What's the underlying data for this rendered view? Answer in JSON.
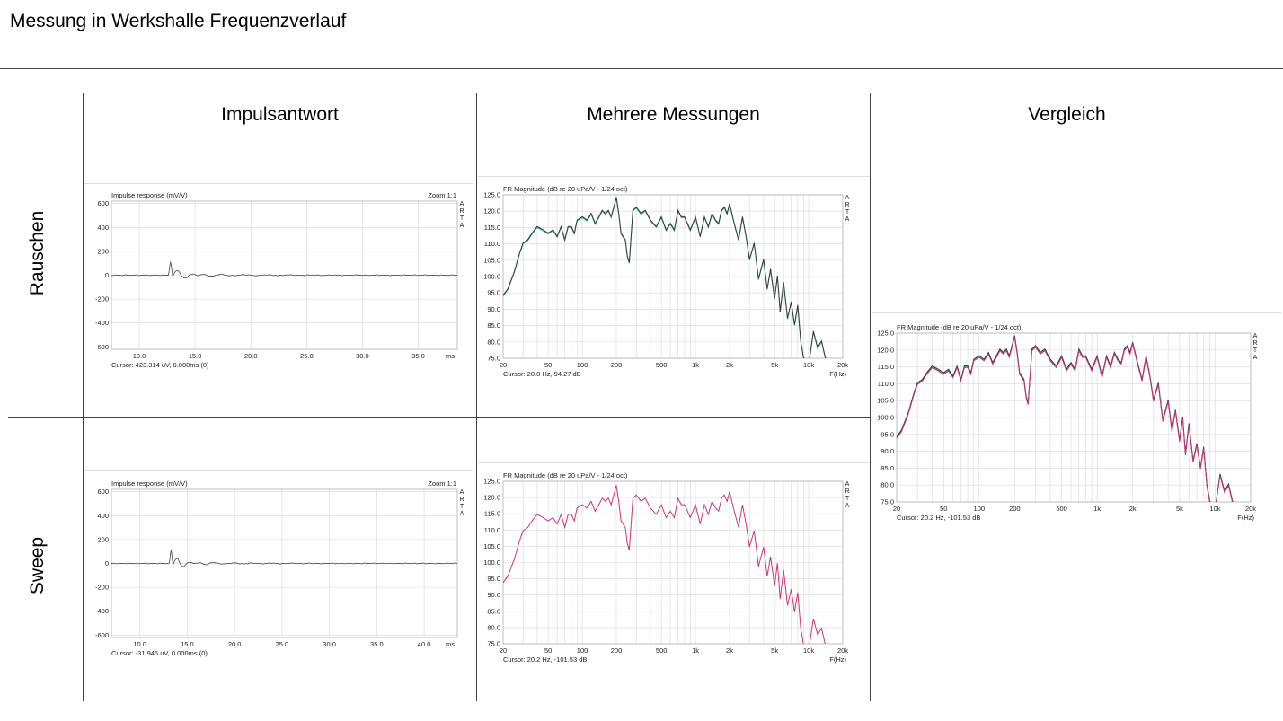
{
  "page": {
    "title": "Messung in Werkshalle Frequenzverlauf"
  },
  "columns": [
    "Impulsantwort",
    "Mehrere Messungen",
    "Vergleich"
  ],
  "rows": [
    "Rauschen",
    "Sweep"
  ],
  "colors": {
    "grid": "#d8d8d8",
    "frame": "#b0b0b0",
    "trace_gray": "#555555",
    "trace_green": "#2db37a",
    "trace_pink": "#cc3377",
    "trace_dark": "#3a3a3a"
  },
  "chart_data": [
    {
      "id": "ir_rauschen",
      "type": "line",
      "title": "Impulse response (mV/V)",
      "zoom": "Zoom 1:1",
      "arta": [
        "A",
        "R",
        "T",
        "A"
      ],
      "cursor": "Cursor: 423.314 uV, 0.000ms (0)",
      "xlabel": "ms",
      "xlim": [
        7.5,
        38.5
      ],
      "ylim": [
        -620,
        620
      ],
      "xticks": [
        10,
        15,
        20,
        25,
        30,
        35
      ],
      "xtick_labels": [
        "10.0",
        "15.0",
        "20.0",
        "25.0",
        "30.0",
        "35.0"
      ],
      "yticks": [
        600,
        400,
        200,
        0,
        -200,
        -400,
        -600
      ],
      "ytick_labels": [
        "600",
        "400",
        "200",
        "0",
        "-200",
        "-400",
        "-600"
      ],
      "impulse_ms": 12.8,
      "series": [
        {
          "values_ms": [
            7.5,
            12.5,
            12.8,
            13.1,
            13.5,
            14.0,
            15.0,
            20.0,
            38.5
          ],
          "values": [
            0,
            10,
            110,
            -30,
            -45,
            20,
            -10,
            5,
            0
          ]
        }
      ]
    },
    {
      "id": "ir_sweep",
      "type": "line",
      "title": "Impulse response (mV/V)",
      "zoom": "Zoom 1:1",
      "arta": [
        "A",
        "R",
        "T",
        "A"
      ],
      "cursor": "Cursor: -31.945 uV, 0.000ms (0)",
      "xlabel": "ms",
      "xlim": [
        7.0,
        43.5
      ],
      "ylim": [
        -620,
        620
      ],
      "xticks": [
        10,
        15,
        20,
        25,
        30,
        35,
        40
      ],
      "xtick_labels": [
        "10.0",
        "15.0",
        "20.0",
        "25.0",
        "30.0",
        "35.0",
        "40.0"
      ],
      "yticks": [
        600,
        400,
        200,
        0,
        -200,
        -400,
        -600
      ],
      "ytick_labels": [
        "600",
        "400",
        "200",
        "0",
        "-200",
        "-400",
        "-600"
      ],
      "impulse_ms": 13.3,
      "series": [
        {
          "values_ms": [
            7.0,
            13.0,
            13.3,
            13.6,
            14.0,
            14.5,
            15.5,
            20.0,
            43.5
          ],
          "values": [
            0,
            10,
            115,
            -30,
            -50,
            20,
            -10,
            5,
            0
          ]
        }
      ]
    },
    {
      "id": "fr_rauschen",
      "type": "line",
      "title": "FR Magnitude (dB re 20 uPa/V - 1/24 oct)",
      "arta": [
        "A",
        "R",
        "T",
        "A"
      ],
      "cursor": "Cursor: 20.0 Hz, 94.27 dB",
      "xlabel": "F(Hz)",
      "xscale": "log",
      "xlim": [
        20,
        20000
      ],
      "ylim": [
        75,
        125
      ],
      "xticks": [
        20,
        50,
        100,
        200,
        500,
        1000,
        2000,
        5000,
        10000,
        20000
      ],
      "xtick_labels": [
        "20",
        "50",
        "100",
        "200",
        "500",
        "1k",
        "2k",
        "5k",
        "10k",
        "20k"
      ],
      "yticks": [
        125,
        120,
        115,
        110,
        105,
        100,
        95,
        90,
        85,
        80,
        75
      ],
      "ytick_labels": [
        "125.0",
        "120.0",
        "115.0",
        "110.0",
        "105.0",
        "100.0",
        "95.0",
        "90.0",
        "85.0",
        "80.0",
        "75.0"
      ],
      "series": [
        {
          "traces": [
            "green",
            "dark"
          ],
          "x": [
            20,
            22,
            25,
            28,
            30,
            33,
            36,
            40,
            45,
            50,
            55,
            60,
            65,
            70,
            75,
            80,
            85,
            90,
            100,
            110,
            120,
            130,
            140,
            150,
            160,
            170,
            180,
            190,
            200,
            210,
            220,
            240,
            250,
            260,
            280,
            300,
            330,
            360,
            400,
            450,
            500,
            550,
            600,
            650,
            700,
            750,
            800,
            900,
            1000,
            1100,
            1200,
            1300,
            1400,
            1500,
            1600,
            1700,
            1800,
            1900,
            2000,
            2200,
            2400,
            2600,
            2800,
            3000,
            3300,
            3600,
            4000,
            4300,
            4600,
            5000,
            5300,
            5600,
            6000,
            6500,
            7000,
            7500,
            8000,
            8500,
            9000,
            10000,
            11000,
            12000,
            13000,
            14000,
            15000,
            16000
          ],
          "y": [
            94,
            96,
            101,
            107,
            110,
            111,
            113,
            115,
            114,
            113,
            114,
            112,
            115,
            111,
            115,
            115,
            113,
            117,
            118,
            117,
            119,
            116,
            118,
            120,
            119,
            120,
            118,
            121,
            124,
            119,
            113,
            111,
            106,
            104,
            120,
            121,
            119,
            120,
            117,
            115,
            118,
            114,
            116,
            114,
            120,
            118,
            118,
            114,
            118,
            112,
            118,
            115,
            119,
            117,
            116,
            120,
            121,
            119,
            122,
            116,
            111,
            118,
            112,
            105,
            110,
            99,
            105,
            96,
            102,
            93,
            100,
            89,
            98,
            87,
            92,
            85,
            91,
            80,
            75,
            72,
            83,
            78,
            80,
            75,
            73,
            72
          ]
        }
      ]
    },
    {
      "id": "fr_sweep",
      "type": "line",
      "title": "FR Magnitude (dB re 20 uPa/V - 1/24 oct)",
      "arta": [
        "A",
        "R",
        "T",
        "A"
      ],
      "cursor": "Cursor: 20.2 Hz, -101.53 dB",
      "xlabel": "F(Hz)",
      "xscale": "log",
      "xlim": [
        20,
        20000
      ],
      "ylim": [
        75,
        125
      ],
      "xticks": [
        20,
        50,
        100,
        200,
        500,
        1000,
        2000,
        5000,
        10000,
        20000
      ],
      "xtick_labels": [
        "20",
        "50",
        "100",
        "200",
        "500",
        "1k",
        "2k",
        "5k",
        "10k",
        "20k"
      ],
      "yticks": [
        125,
        120,
        115,
        110,
        105,
        100,
        95,
        90,
        85,
        80,
        75
      ],
      "ytick_labels": [
        "125.0",
        "120.0",
        "115.0",
        "110.0",
        "105.0",
        "100.0",
        "95.0",
        "90.0",
        "85.0",
        "80.0",
        "75.0"
      ],
      "series": [
        {
          "traces": [
            "pink"
          ],
          "x": [
            20,
            22,
            25,
            28,
            30,
            33,
            36,
            40,
            45,
            50,
            55,
            60,
            65,
            70,
            75,
            80,
            85,
            90,
            100,
            110,
            120,
            130,
            140,
            150,
            160,
            170,
            180,
            190,
            200,
            210,
            220,
            240,
            250,
            260,
            280,
            300,
            330,
            360,
            400,
            450,
            500,
            550,
            600,
            650,
            700,
            750,
            800,
            900,
            1000,
            1100,
            1200,
            1300,
            1400,
            1500,
            1600,
            1700,
            1800,
            1900,
            2000,
            2200,
            2400,
            2600,
            2800,
            3000,
            3300,
            3600,
            4000,
            4300,
            4600,
            5000,
            5300,
            5600,
            6000,
            6500,
            7000,
            7500,
            8000,
            8500,
            9000,
            10000,
            11000,
            12000,
            13000,
            14000,
            15000,
            16000
          ],
          "y": [
            94,
            96,
            101,
            107,
            110,
            111,
            113,
            115,
            114,
            113,
            114,
            112,
            115,
            111,
            115,
            115,
            113,
            117,
            118,
            117,
            119,
            116,
            118,
            120,
            119,
            120,
            118,
            121,
            124,
            119,
            113,
            111,
            106,
            104,
            120,
            121,
            119,
            120,
            117,
            115,
            118,
            114,
            116,
            114,
            120,
            118,
            118,
            114,
            118,
            112,
            118,
            115,
            119,
            117,
            116,
            120,
            121,
            119,
            122,
            116,
            111,
            118,
            112,
            105,
            110,
            99,
            105,
            96,
            102,
            93,
            100,
            89,
            98,
            87,
            92,
            85,
            91,
            80,
            75,
            72,
            83,
            78,
            80,
            75,
            73,
            72
          ]
        }
      ]
    },
    {
      "id": "fr_vergleich",
      "type": "line",
      "title": "FR Magnitude (dB re 20 uPa/V - 1/24 oct)",
      "arta": [
        "A",
        "R",
        "T",
        "A"
      ],
      "cursor": "Cursor: 20.2 Hz, -101.53 dB",
      "xlabel": "F(Hz)",
      "xscale": "log",
      "xlim": [
        20,
        20000
      ],
      "ylim": [
        75,
        125
      ],
      "xticks": [
        20,
        50,
        100,
        200,
        500,
        1000,
        2000,
        5000,
        10000,
        20000
      ],
      "xtick_labels": [
        "20",
        "50",
        "100",
        "200",
        "500",
        "1k",
        "2k",
        "5k",
        "10k",
        "20k"
      ],
      "yticks": [
        125,
        120,
        115,
        110,
        105,
        100,
        95,
        90,
        85,
        80,
        75
      ],
      "ytick_labels": [
        "125.0",
        "120.0",
        "115.0",
        "110.0",
        "105.0",
        "100.0",
        "95.0",
        "90.0",
        "85.0",
        "80.0",
        "75.0"
      ],
      "series": [
        {
          "traces": [
            "green",
            "dark",
            "pink"
          ],
          "x": [
            20,
            22,
            25,
            28,
            30,
            33,
            36,
            40,
            45,
            50,
            55,
            60,
            65,
            70,
            75,
            80,
            85,
            90,
            100,
            110,
            120,
            130,
            140,
            150,
            160,
            170,
            180,
            190,
            200,
            210,
            220,
            240,
            250,
            260,
            280,
            300,
            330,
            360,
            400,
            450,
            500,
            550,
            600,
            650,
            700,
            750,
            800,
            900,
            1000,
            1100,
            1200,
            1300,
            1400,
            1500,
            1600,
            1700,
            1800,
            1900,
            2000,
            2200,
            2400,
            2600,
            2800,
            3000,
            3300,
            3600,
            4000,
            4300,
            4600,
            5000,
            5300,
            5600,
            6000,
            6500,
            7000,
            7500,
            8000,
            8500,
            9000,
            10000,
            11000,
            12000,
            13000,
            14000,
            15000,
            16000
          ],
          "y": [
            94,
            96,
            101,
            107,
            110,
            111,
            113,
            115,
            114,
            113,
            114,
            112,
            115,
            111,
            115,
            115,
            113,
            117,
            118,
            117,
            119,
            116,
            118,
            120,
            119,
            120,
            118,
            121,
            124,
            119,
            113,
            111,
            106,
            104,
            120,
            121,
            119,
            120,
            117,
            115,
            118,
            114,
            116,
            114,
            120,
            118,
            118,
            114,
            118,
            112,
            118,
            115,
            119,
            117,
            116,
            120,
            121,
            119,
            122,
            116,
            111,
            118,
            112,
            105,
            110,
            99,
            105,
            96,
            102,
            93,
            100,
            89,
            98,
            87,
            92,
            85,
            91,
            80,
            75,
            72,
            83,
            78,
            80,
            75,
            73,
            72
          ]
        }
      ]
    }
  ]
}
